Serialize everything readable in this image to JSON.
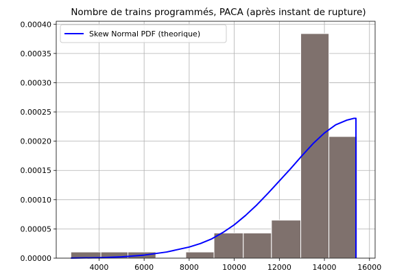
{
  "chart_data": {
    "type": "bar",
    "title": "Nombre de trains programmés, PACA (après instant de rupture)",
    "xlabel": "",
    "ylabel": "",
    "xlim": [
      2100,
      16250
    ],
    "ylim": [
      0,
      0.000405
    ],
    "x_ticks": [
      4000,
      6000,
      8000,
      10000,
      12000,
      14000,
      16000
    ],
    "x_tick_labels": [
      "4000",
      "6000",
      "8000",
      "10000",
      "12000",
      "14000",
      "16000"
    ],
    "y_ticks": [
      0,
      5e-05,
      0.0001,
      0.00015,
      0.0002,
      0.00025,
      0.0003,
      0.00035,
      0.0004
    ],
    "y_tick_labels": [
      "0.00000",
      "0.00005",
      "0.00010",
      "0.00015",
      "0.00020",
      "0.00025",
      "0.00030",
      "0.00035",
      "0.00040"
    ],
    "grid": true,
    "legend_position": "top-left",
    "histogram": {
      "color": "#7f716d",
      "edge_color": "#ffffff",
      "bins": [
        {
          "x0": 2750,
          "x1": 4080,
          "density": 1.05e-05
        },
        {
          "x0": 4080,
          "x1": 5280,
          "density": 1.05e-05
        },
        {
          "x0": 5280,
          "x1": 6520,
          "density": 1.05e-05
        },
        {
          "x0": 7850,
          "x1": 9100,
          "density": 1.05e-05
        },
        {
          "x0": 9100,
          "x1": 10400,
          "density": 4.3e-05
        },
        {
          "x0": 10400,
          "x1": 11650,
          "density": 4.3e-05
        },
        {
          "x0": 11650,
          "x1": 12950,
          "density": 6.5e-05
        },
        {
          "x0": 12950,
          "x1": 14200,
          "density": 0.000384
        },
        {
          "x0": 14200,
          "x1": 15450,
          "density": 0.000208
        }
      ]
    },
    "series": [
      {
        "name": "Skew Normal PDF (theorique)",
        "color": "#0000ff",
        "x": [
          2750,
          4000,
          5000,
          6000,
          7000,
          8000,
          8500,
          9000,
          9500,
          10000,
          10500,
          11000,
          11500,
          12000,
          12500,
          13000,
          13500,
          14000,
          14500,
          15000,
          15300,
          15400,
          15400
        ],
        "y": [
          1e-07,
          8e-07,
          2.2e-06,
          5.2e-06,
          1.05e-05,
          1.9e-05,
          2.5e-05,
          3.3e-05,
          4.4e-05,
          5.7e-05,
          7.3e-05,
          9.1e-05,
          0.000111,
          0.000132,
          0.000153,
          0.000175,
          0.000196,
          0.000214,
          0.000228,
          0.000236,
          0.000239,
          0.000239,
          0
        ]
      }
    ]
  }
}
